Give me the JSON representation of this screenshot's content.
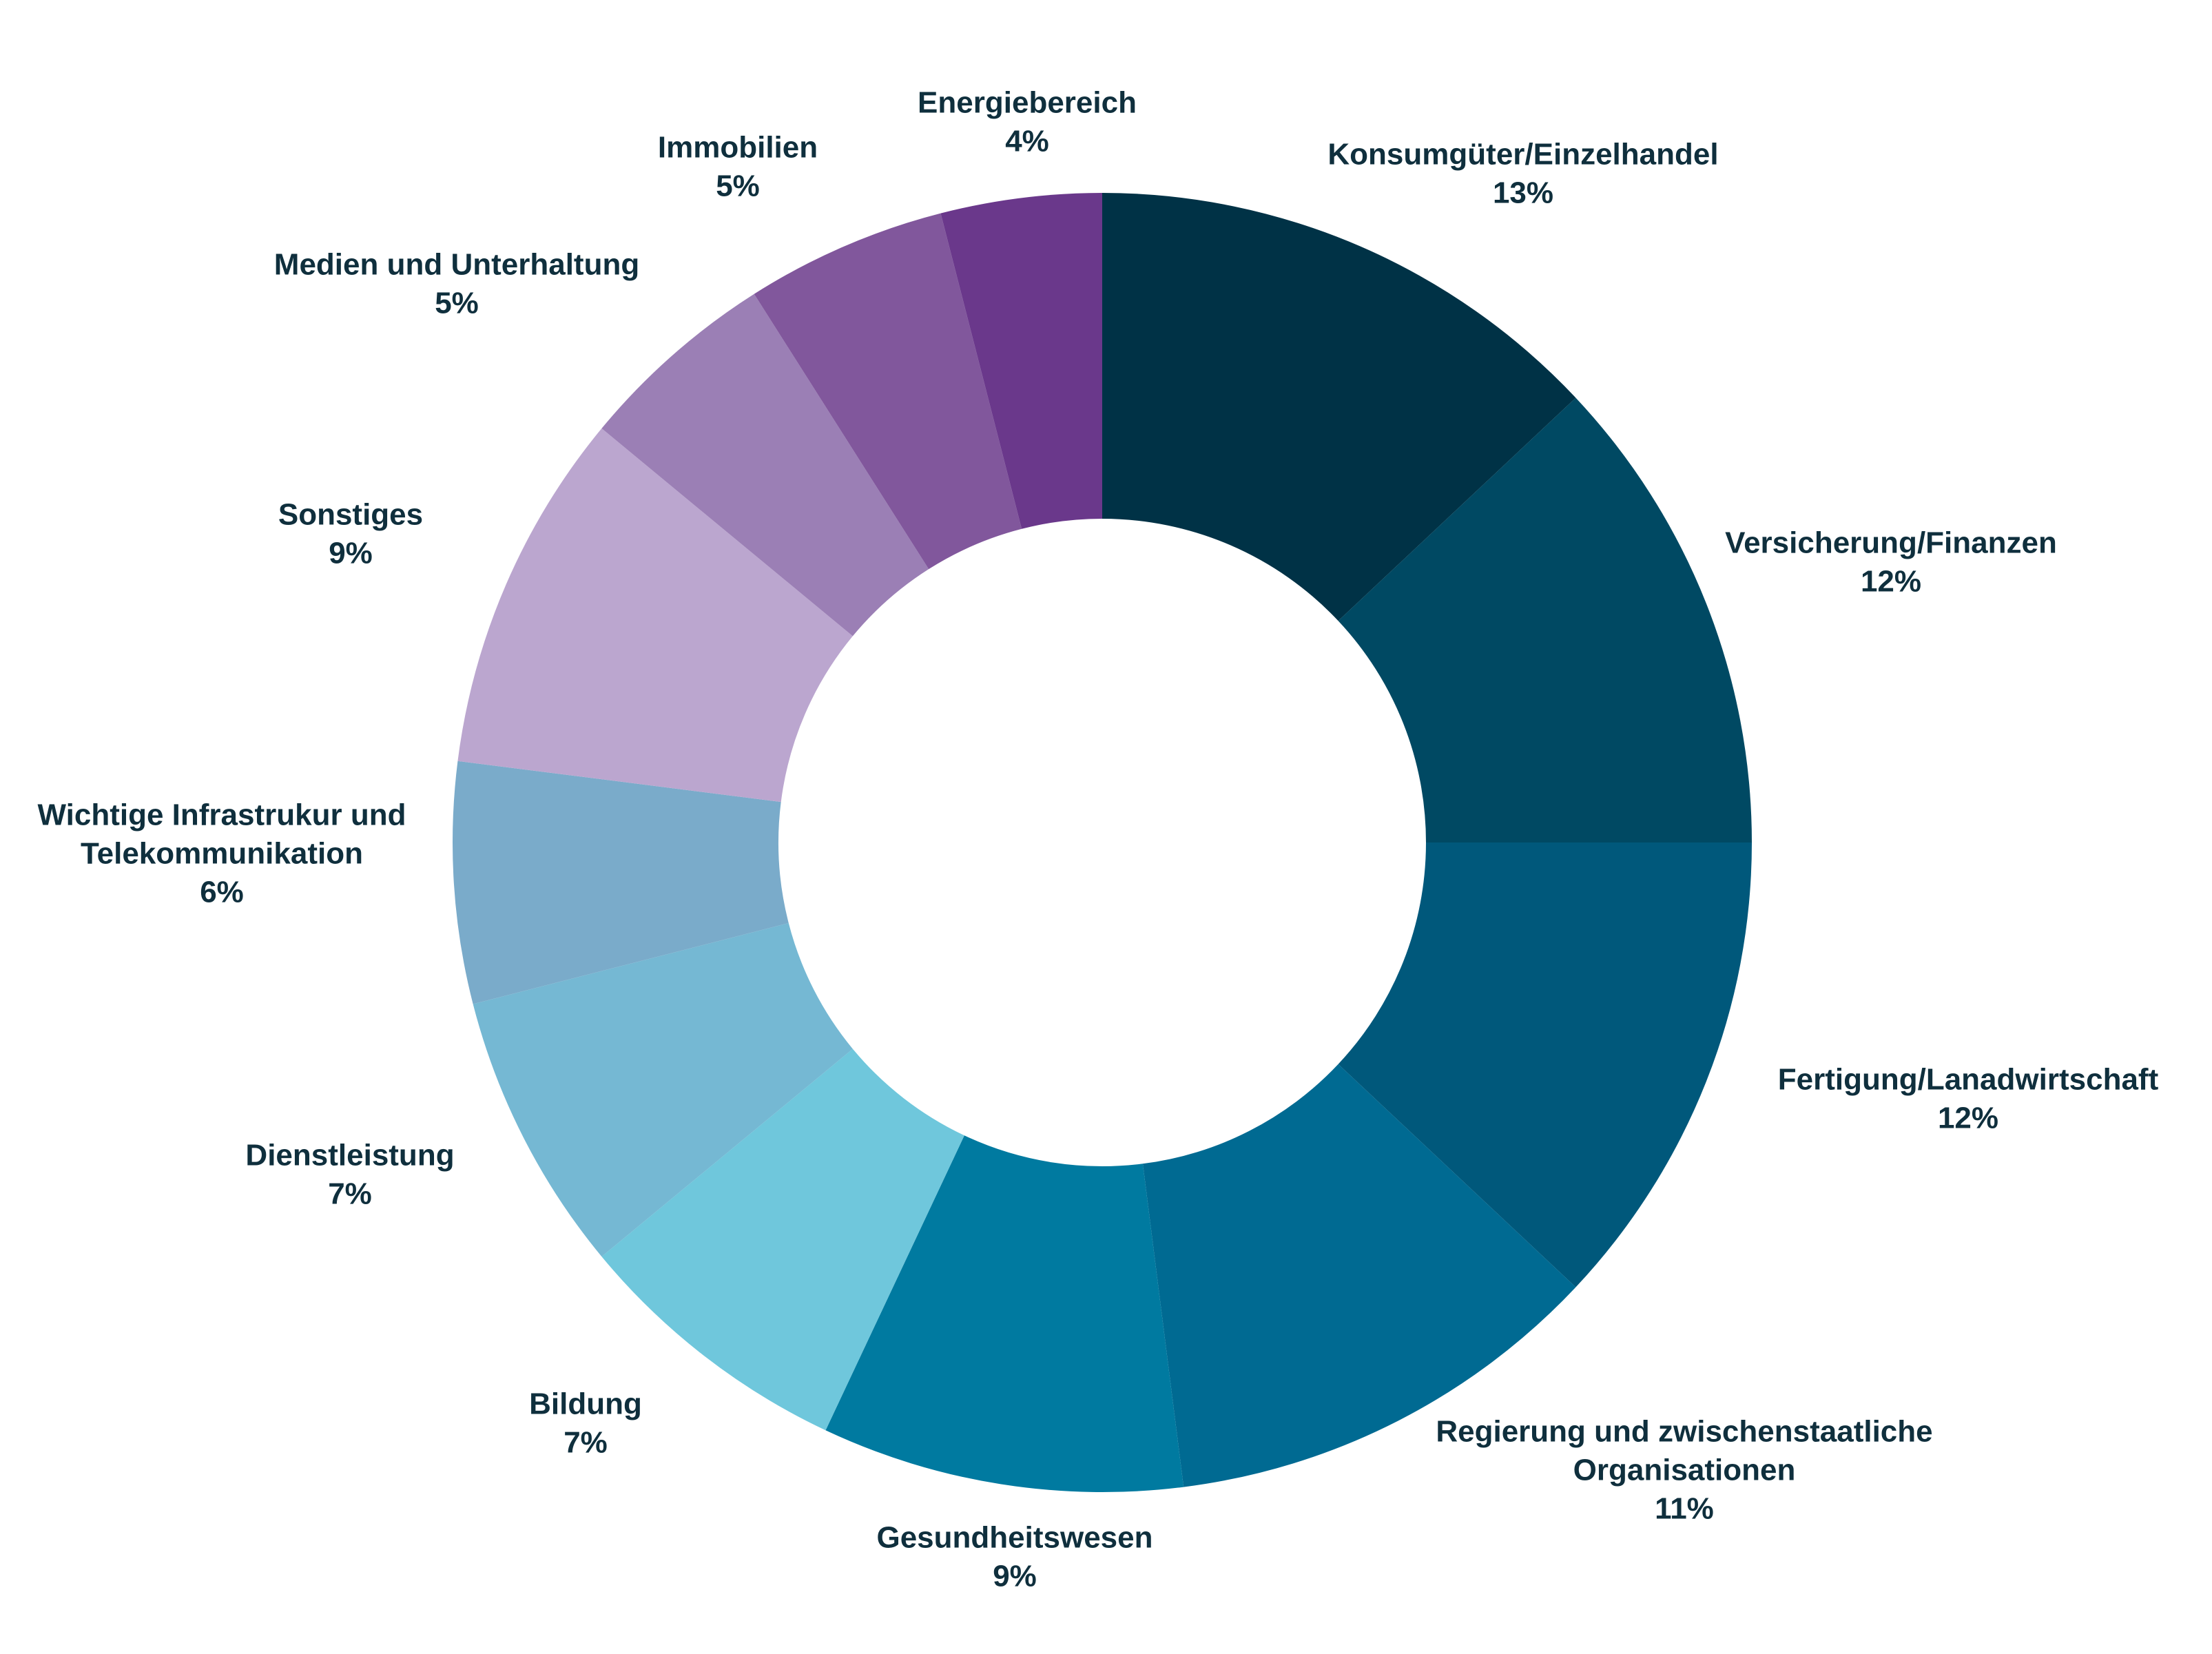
{
  "chart_data": {
    "type": "pie",
    "variant": "donut",
    "start": "top",
    "direction": "clockwise",
    "title": "",
    "legend": "none",
    "slices": [
      {
        "label": [
          "Konsumgüter/Einzelhandel"
        ],
        "value": 13,
        "value_label": "13%",
        "color": "#003246"
      },
      {
        "label": [
          "Versicherung/Finanzen"
        ],
        "value": 12,
        "value_label": "12%",
        "color": "#004963"
      },
      {
        "label": [
          "Fertigung/Lanadwirtschaft"
        ],
        "value": 12,
        "value_label": "12%",
        "color": "#00587b"
      },
      {
        "label": [
          "Regierung und zwischenstaatliche",
          "Organisationen"
        ],
        "value": 11,
        "value_label": "11%",
        "color": "#006a92"
      },
      {
        "label": [
          "Gesundheitswesen"
        ],
        "value": 9,
        "value_label": "9%",
        "color": "#007aa0"
      },
      {
        "label": [
          "Bildung"
        ],
        "value": 7,
        "value_label": "7%",
        "color": "#6fc7dc"
      },
      {
        "label": [
          "Dienstleistung"
        ],
        "value": 7,
        "value_label": "7%",
        "color": "#75b8d3"
      },
      {
        "label": [
          "Wichtige Infrastrukur und",
          "Telekommunikation"
        ],
        "value": 6,
        "value_label": "6%",
        "color": "#7aabca"
      },
      {
        "label": [
          "Sonstiges"
        ],
        "value": 9,
        "value_label": "9%",
        "color": "#bba6cf"
      },
      {
        "label": [
          "Medien und Unterhaltung"
        ],
        "value": 5,
        "value_label": "5%",
        "color": "#9b7fb5"
      },
      {
        "label": [
          "Immobilien"
        ],
        "value": 5,
        "value_label": "5%",
        "color": "#81579c"
      },
      {
        "label": [
          "Energiebereich"
        ],
        "value": 4,
        "value_label": "4%",
        "color": "#6a388b"
      }
    ]
  }
}
